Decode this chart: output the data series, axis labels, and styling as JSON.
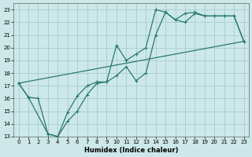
{
  "xlabel": "Humidex (Indice chaleur)",
  "bg_color": "#cce8e8",
  "grid_color": "#aacccc",
  "line_color": "#2a7a6a",
  "xlim": [
    -0.5,
    23.5
  ],
  "ylim": [
    13,
    23.5
  ],
  "xticks": [
    0,
    1,
    2,
    3,
    4,
    5,
    6,
    7,
    8,
    9,
    10,
    11,
    12,
    13,
    14,
    15,
    16,
    17,
    18,
    19,
    20,
    21,
    22,
    23
  ],
  "yticks": [
    13,
    14,
    15,
    16,
    17,
    18,
    19,
    20,
    21,
    22,
    23
  ],
  "line_straight": {
    "x": [
      0,
      23
    ],
    "y": [
      17.2,
      20.5
    ]
  },
  "line_lower": {
    "x": [
      0,
      1,
      2,
      3,
      4,
      5,
      6,
      7,
      8,
      9,
      10,
      11,
      12,
      13,
      14,
      15,
      16,
      17,
      18,
      19,
      20,
      21,
      22,
      23
    ],
    "y": [
      17.2,
      16.1,
      16.0,
      13.2,
      13.0,
      14.2,
      15.0,
      16.3,
      17.2,
      17.3,
      17.8,
      18.5,
      17.4,
      18.0,
      21.0,
      22.8,
      22.2,
      22.7,
      22.8,
      22.5,
      22.5,
      22.5,
      22.5,
      20.5
    ]
  },
  "line_upper": {
    "x": [
      0,
      1,
      3,
      4,
      5,
      6,
      7,
      8,
      9,
      10,
      11,
      12,
      13,
      14,
      15,
      16,
      17,
      18,
      19,
      20,
      21,
      22,
      23
    ],
    "y": [
      17.2,
      16.1,
      13.2,
      13.0,
      14.9,
      16.2,
      17.0,
      17.3,
      17.3,
      20.2,
      19.0,
      19.5,
      20.0,
      23.0,
      22.8,
      22.2,
      22.0,
      22.7,
      22.5,
      22.5,
      22.5,
      22.5,
      20.5
    ]
  }
}
